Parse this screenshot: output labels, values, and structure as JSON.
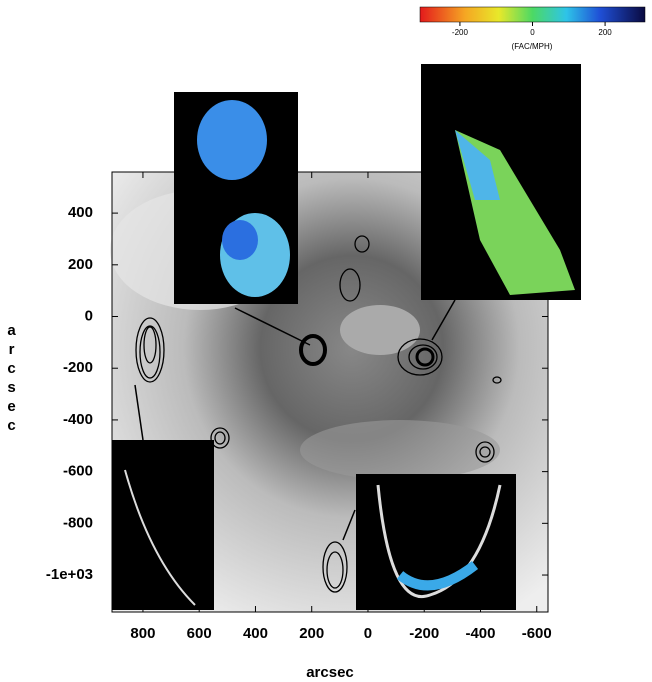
{
  "chart_data": {
    "type": "image",
    "xlabel": "arcsec",
    "ylabel": "arcsec",
    "xlim": [
      910,
      -640
    ],
    "xticks": [
      800,
      600,
      400,
      200,
      0,
      -200,
      -400,
      -600
    ],
    "ylim": [
      -1143,
      559
    ],
    "yticks": [
      400,
      200,
      0,
      -200,
      -400,
      -600,
      -800,
      {
        "value": -1000,
        "label": "-1e+03"
      }
    ],
    "colorbar": {
      "label": "(FAC/MPH)",
      "lim": [
        -310,
        310
      ],
      "ticks": [
        -200,
        0,
        200
      ]
    }
  }
}
